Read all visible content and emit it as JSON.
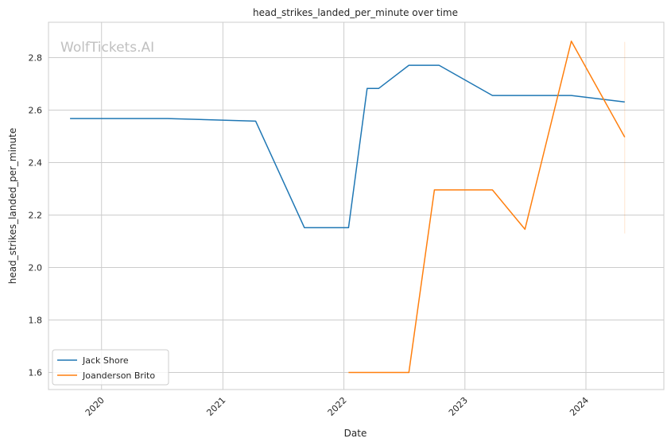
{
  "watermark": "WolfTickets.AI",
  "chart_data": {
    "type": "line",
    "title": "head_strikes_landed_per_minute over time",
    "xlabel": "Date",
    "ylabel": "head_strikes_landed_per_minute",
    "x_type": "date",
    "xlim": [
      "2019-07-25",
      "2024-08-23"
    ],
    "ylim": [
      1.535,
      2.935
    ],
    "x_ticks": [
      {
        "date": "2020-01-01",
        "label": "2020"
      },
      {
        "date": "2021-01-01",
        "label": "2021"
      },
      {
        "date": "2022-01-01",
        "label": "2022"
      },
      {
        "date": "2023-01-01",
        "label": "2023"
      },
      {
        "date": "2024-01-01",
        "label": "2024"
      }
    ],
    "y_ticks": [
      1.6,
      1.8,
      2.0,
      2.2,
      2.4,
      2.6,
      2.8
    ],
    "y_tick_labels": [
      "1.6",
      "1.8",
      "2.0",
      "2.2",
      "2.4",
      "2.6",
      "2.8"
    ],
    "grid": true,
    "legend_position": "lower-left",
    "series": [
      {
        "name": "Jack Shore",
        "color": "#1f77b4",
        "points": [
          {
            "x": "2019-09-28",
            "y": 2.568
          },
          {
            "x": "2020-07-18",
            "y": 2.568
          },
          {
            "x": "2021-04-10",
            "y": 2.558
          },
          {
            "x": "2021-09-04",
            "y": 2.152
          },
          {
            "x": "2022-01-15",
            "y": 2.152
          },
          {
            "x": "2022-03-12",
            "y": 2.683
          },
          {
            "x": "2022-04-16",
            "y": 2.683
          },
          {
            "x": "2022-07-16",
            "y": 2.771
          },
          {
            "x": "2022-10-15",
            "y": 2.771
          },
          {
            "x": "2023-03-25",
            "y": 2.656
          },
          {
            "x": "2023-11-18",
            "y": 2.656
          },
          {
            "x": "2024-04-27",
            "y": 2.631
          }
        ]
      },
      {
        "name": "Joanderson Brito",
        "color": "#ff7f0e",
        "points": [
          {
            "x": "2022-01-15",
            "y": 1.6
          },
          {
            "x": "2022-07-16",
            "y": 1.6
          },
          {
            "x": "2022-10-01",
            "y": 2.296
          },
          {
            "x": "2023-03-25",
            "y": 2.296
          },
          {
            "x": "2023-07-01",
            "y": 2.146
          },
          {
            "x": "2023-11-18",
            "y": 2.863
          },
          {
            "x": "2024-04-27",
            "y": 2.497
          }
        ]
      }
    ],
    "error_band": {
      "x": "2024-04-27",
      "y_low": 2.13,
      "y_high": 2.86,
      "color": "#ff7f0e"
    }
  }
}
